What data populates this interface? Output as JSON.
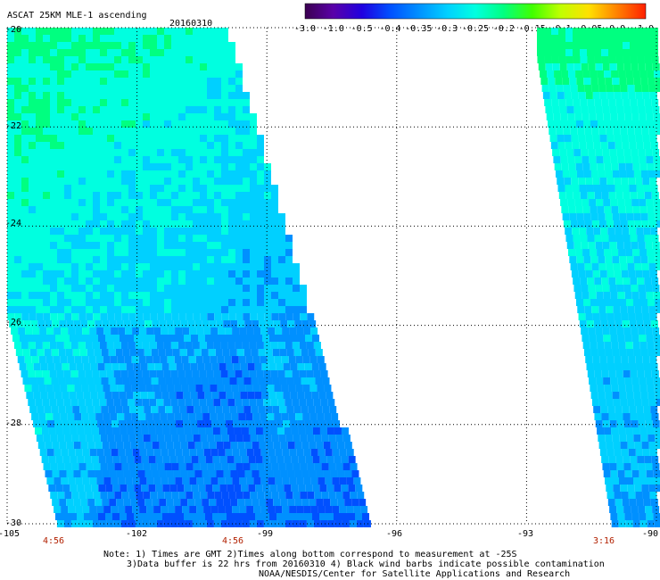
{
  "header": {
    "title": "ASCAT 25KM MLE-1 ascending",
    "date": "20160310"
  },
  "colorbar": {
    "labels": [
      "-3.0",
      "-1.0",
      "-0.5",
      "-0.4",
      "-0.35",
      "-0.3",
      "-0.25",
      "-0.2",
      "-0.15",
      "-0.1",
      "-0.05",
      "0.0",
      "1.0"
    ],
    "colors": [
      "#3b0050",
      "#5a00a8",
      "#2000e0",
      "#0050ff",
      "#0090ff",
      "#00d0ff",
      "#00ffe0",
      "#00ff80",
      "#40ff00",
      "#c0ff00",
      "#ffe000",
      "#ff8000",
      "#ff2000"
    ]
  },
  "axes": {
    "lat_labels": [
      "-20",
      "-22",
      "-24",
      "-26",
      "-28",
      "-30"
    ],
    "lon_labels": [
      "-105",
      "-102",
      "-99",
      "-96",
      "-93",
      "-90"
    ],
    "lat_range": [
      -30,
      -20
    ],
    "lon_range": [
      -105,
      -90
    ]
  },
  "swaths": {
    "left": {
      "time_labels": [
        "4:56",
        "4:56"
      ]
    },
    "right": {
      "time_labels": [
        "3:16"
      ]
    }
  },
  "notes": {
    "line1": "Note: 1) Times are GMT 2)Times along bottom correspond to measurement at -25S",
    "line2": "3)Data buffer is 22 hrs from 20160310 4) Black wind barbs indicate possible contamination",
    "line3": "NOAA/NESDIS/Center for Satellite Applications and Research"
  }
}
